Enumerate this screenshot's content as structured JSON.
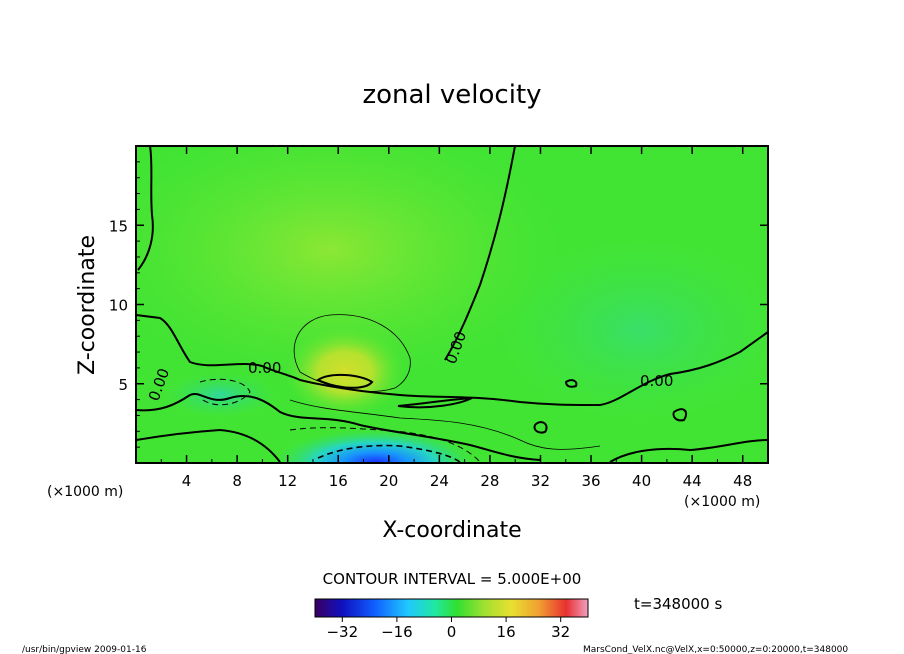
{
  "chart_data": {
    "type": "heatmap",
    "title": "zonal velocity",
    "xlabel": "X-coordinate",
    "ylabel": "Z-coordinate",
    "x_unit_label": "(×1000 m)",
    "y_unit_label": "(×1000 m)",
    "xlim": [
      0,
      50
    ],
    "ylim": [
      0,
      20
    ],
    "x_ticks": [
      4,
      8,
      12,
      16,
      20,
      24,
      28,
      32,
      36,
      40,
      44,
      48
    ],
    "y_ticks": [
      5,
      10,
      15
    ],
    "x_tick_labels": [
      "4",
      "8",
      "12",
      "16",
      "20",
      "24",
      "28",
      "32",
      "36",
      "40",
      "44",
      "48"
    ],
    "y_tick_labels": [
      "5",
      "10",
      "15"
    ],
    "contour_interval_text": "CONTOUR INTERVAL = 5.000E+00",
    "contour_labels": [
      "0.00",
      "0.00",
      "0.00",
      "0.00"
    ],
    "colorbar": {
      "range": [
        -40,
        40
      ],
      "ticks": [
        -32,
        -16,
        0,
        16,
        32
      ],
      "tick_labels": [
        "-32",
        "-16",
        "0",
        "16",
        "32"
      ]
    },
    "time_label": "t=348000 s",
    "footer_left": "/usr/bin/gpview  2009-01-16",
    "footer_right": "MarsCond_VelX.nc@VelX,x=0:50000,z=0:20000,t=348000",
    "features": [
      {
        "name": "positive jet core",
        "x": 17,
        "z": 5.5,
        "value": 10
      },
      {
        "name": "negative low-level core",
        "x": 18,
        "z": 0.3,
        "value": -25
      },
      {
        "name": "weak negative region",
        "x": 7,
        "z": 4.5,
        "value": -3
      }
    ],
    "colors": {
      "background_field": "#33e633",
      "positive": "#d8e030",
      "negative": "#2060ff",
      "contour": "#000000"
    }
  }
}
